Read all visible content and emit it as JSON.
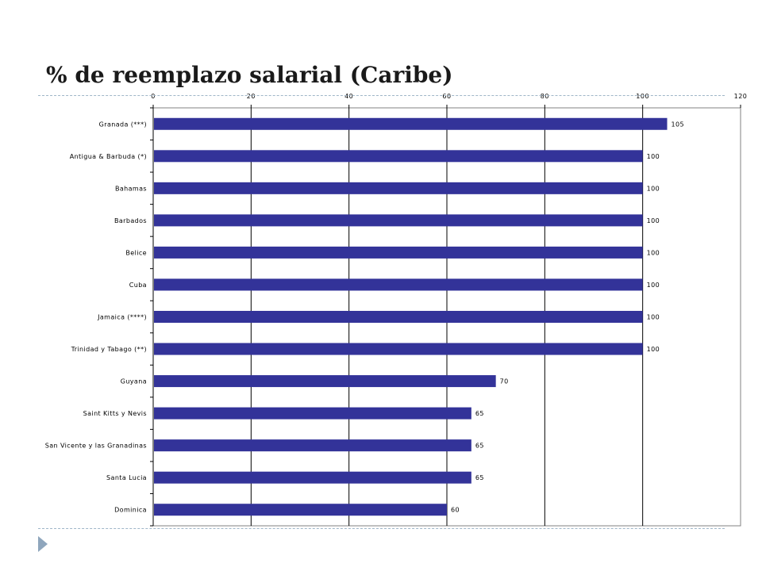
{
  "slide": {
    "title": "% de reemplazo salarial (Caribe)",
    "nav_icon": "triangle-right-icon"
  },
  "chart_data": {
    "type": "bar",
    "orientation": "horizontal",
    "title": "% de reemplazo salarial (Caribe)",
    "xlabel": "",
    "ylabel": "",
    "xlim": [
      0,
      120
    ],
    "xticks": [
      0,
      20,
      40,
      60,
      80,
      100,
      120
    ],
    "x_axis_position": "top",
    "grid": true,
    "categories": [
      "Granada (***)",
      "Antigua & Barbuda (*)",
      "Bahamas",
      "Barbados",
      "Belice",
      "Cuba",
      "Jamaica (****)",
      "Trinidad y Tabago (**)",
      "Guyana",
      "Saint Kitts y Nevis",
      "San Vicente y las Granadinas",
      "Santa Lucia",
      "Dominica"
    ],
    "values": [
      105,
      100,
      100,
      100,
      100,
      100,
      100,
      100,
      70,
      65,
      65,
      65,
      60
    ],
    "data_labels": true,
    "colors": {
      "bar": "#333399",
      "grid": "#000000",
      "background": "#ffffff"
    }
  }
}
